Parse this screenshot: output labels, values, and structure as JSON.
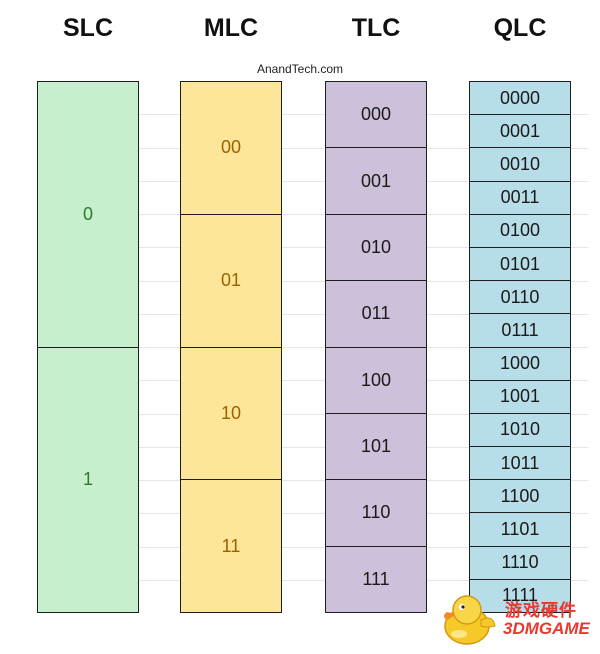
{
  "credit": "AnandTech.com",
  "columns": [
    {
      "title": "SLC",
      "cells": [
        "0",
        "1"
      ],
      "fill": "#c6efce"
    },
    {
      "title": "MLC",
      "cells": [
        "00",
        "01",
        "10",
        "11"
      ],
      "fill": "#fde699"
    },
    {
      "title": "TLC",
      "cells": [
        "000",
        "001",
        "010",
        "011",
        "100",
        "101",
        "110",
        "111"
      ],
      "fill": "#ccc0da"
    },
    {
      "title": "QLC",
      "cells": [
        "0000",
        "0001",
        "0010",
        "0011",
        "0100",
        "0101",
        "0110",
        "0111",
        "1000",
        "1001",
        "1010",
        "1011",
        "1100",
        "1101",
        "1110",
        "1111"
      ],
      "fill": "#b7dde8"
    }
  ],
  "watermark": {
    "line1": "游戏硬件",
    "line2": "3DMGAME"
  }
}
